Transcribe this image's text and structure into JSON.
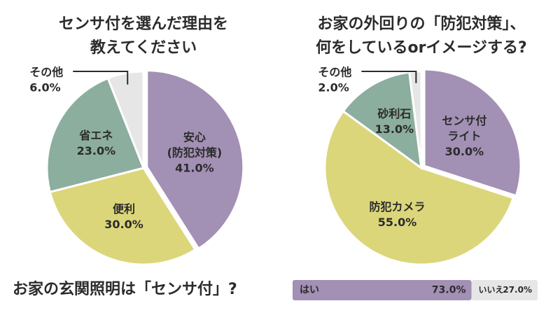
{
  "chart_data": [
    {
      "type": "pie",
      "title": [
        "センサ付を選んだ理由を",
        "教えてください"
      ],
      "categories": [
        [
          "安心",
          "(防犯対策)"
        ],
        [
          "便利"
        ],
        [
          "省エネ"
        ],
        [
          "その他"
        ]
      ],
      "values": [
        41,
        30,
        23,
        6
      ],
      "value_labels": [
        "41.0%",
        "30.0%",
        "23.0%",
        "6.0%"
      ],
      "colors": [
        "#a390b5",
        "#dcd67b",
        "#8cae9e",
        "#e6e6e6"
      ]
    },
    {
      "type": "pie",
      "title": [
        "お家の外回りの「防犯対策」、",
        "何をしているorイメージする?"
      ],
      "categories": [
        [
          "センサ付",
          "ライト"
        ],
        [
          "防犯カメラ"
        ],
        [
          "砂利石"
        ],
        [
          "その他"
        ]
      ],
      "values": [
        30,
        55,
        13,
        2
      ],
      "value_labels": [
        "30.0%",
        "55.0%",
        "13.0%",
        "2.0%"
      ],
      "colors": [
        "#a390b5",
        "#dcd67b",
        "#8cae9e",
        "#e6e6e6"
      ]
    },
    {
      "type": "stacked-bar",
      "title": "お家の玄関照明は「センサ付」?",
      "categories": [
        "はい",
        "いいえ"
      ],
      "values": [
        73,
        27
      ],
      "value_labels": [
        "73.0%",
        "27.0%"
      ],
      "colors": [
        "#a390b5",
        "#e6e6e6"
      ]
    }
  ]
}
